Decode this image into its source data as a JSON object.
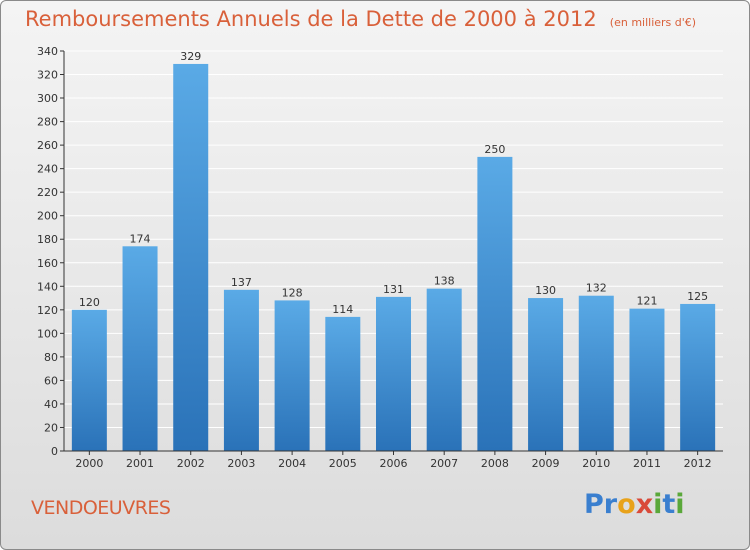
{
  "header": {
    "title": "Remboursements Annuels de la Dette de 2000 à 2012",
    "unit": "(en milliers d'€)"
  },
  "footer": {
    "city": "VENDOEUVRES",
    "brand_letters": [
      {
        "char": "P",
        "color": "#3a7fcf"
      },
      {
        "char": "r",
        "color": "#3a7fcf"
      },
      {
        "char": "o",
        "color": "#e8a21a"
      },
      {
        "char": "x",
        "color": "#d94a3a"
      },
      {
        "char": "i",
        "color": "#5aa83a"
      },
      {
        "char": "t",
        "color": "#3a7fcf"
      },
      {
        "char": "i",
        "color": "#5aa83a"
      }
    ]
  },
  "colors": {
    "title": "#d9603a",
    "bar_top": "#5aaae6",
    "bar_bottom": "#2a72b8",
    "grid": "#ffffff",
    "axis": "#333333"
  },
  "chart_data": {
    "type": "bar",
    "categories": [
      "2000",
      "2001",
      "2002",
      "2003",
      "2004",
      "2005",
      "2006",
      "2007",
      "2008",
      "2009",
      "2010",
      "2011",
      "2012"
    ],
    "values": [
      120,
      174,
      329,
      137,
      128,
      114,
      131,
      138,
      250,
      130,
      132,
      121,
      125
    ],
    "ylim": [
      0,
      340
    ],
    "yticks": [
      0,
      20,
      40,
      60,
      80,
      100,
      120,
      140,
      160,
      180,
      200,
      220,
      240,
      260,
      280,
      300,
      320,
      340
    ],
    "grid": true,
    "data_labels": true
  }
}
